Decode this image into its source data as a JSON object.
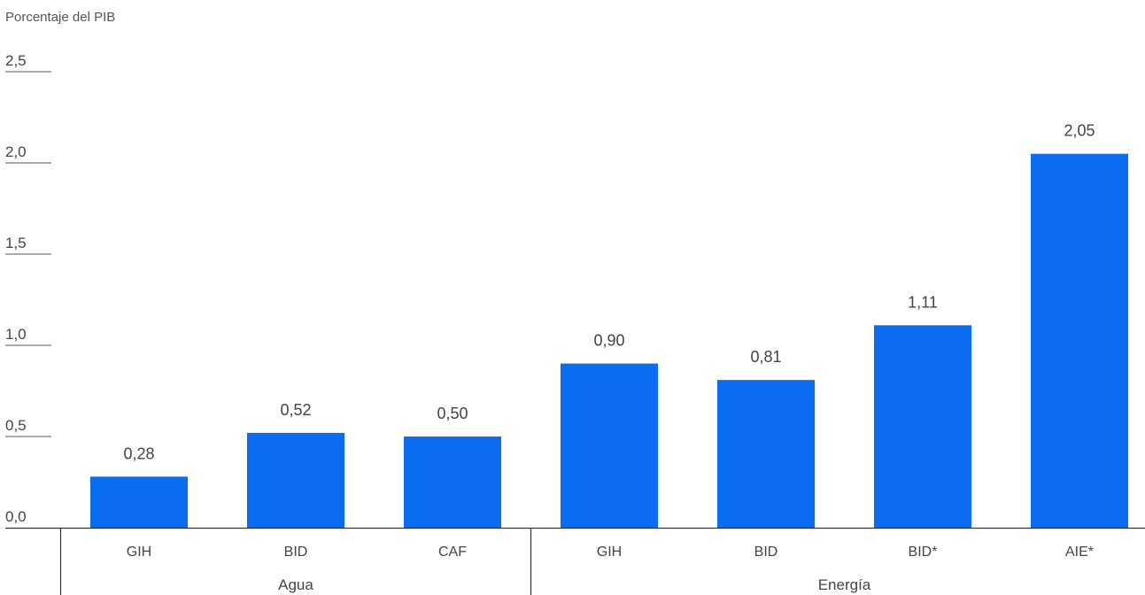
{
  "chart_data": {
    "type": "bar",
    "ylabel": "Porcentaje del PIB",
    "ylim": [
      0,
      2.5
    ],
    "yticks": [
      "0,0",
      "0,5",
      "1,0",
      "1,5",
      "2,0",
      "2,5"
    ],
    "ytick_values": [
      0,
      0.5,
      1.0,
      1.5,
      2.0,
      2.5
    ],
    "groups": [
      {
        "name": "Agua",
        "categories": [
          "GIH",
          "BID",
          "CAF"
        ],
        "values": [
          0.28,
          0.52,
          0.5
        ],
        "value_labels": [
          "0,28",
          "0,52",
          "0,50"
        ]
      },
      {
        "name": "Energía",
        "categories": [
          "GIH",
          "BID",
          "BID*",
          "AIE*"
        ],
        "values": [
          0.9,
          0.81,
          1.11,
          2.05
        ],
        "value_labels": [
          "0,90",
          "0,81",
          "1,11",
          "2,05"
        ]
      }
    ],
    "bar_color": "#0a6cf0",
    "grid": false,
    "legend": "none"
  }
}
